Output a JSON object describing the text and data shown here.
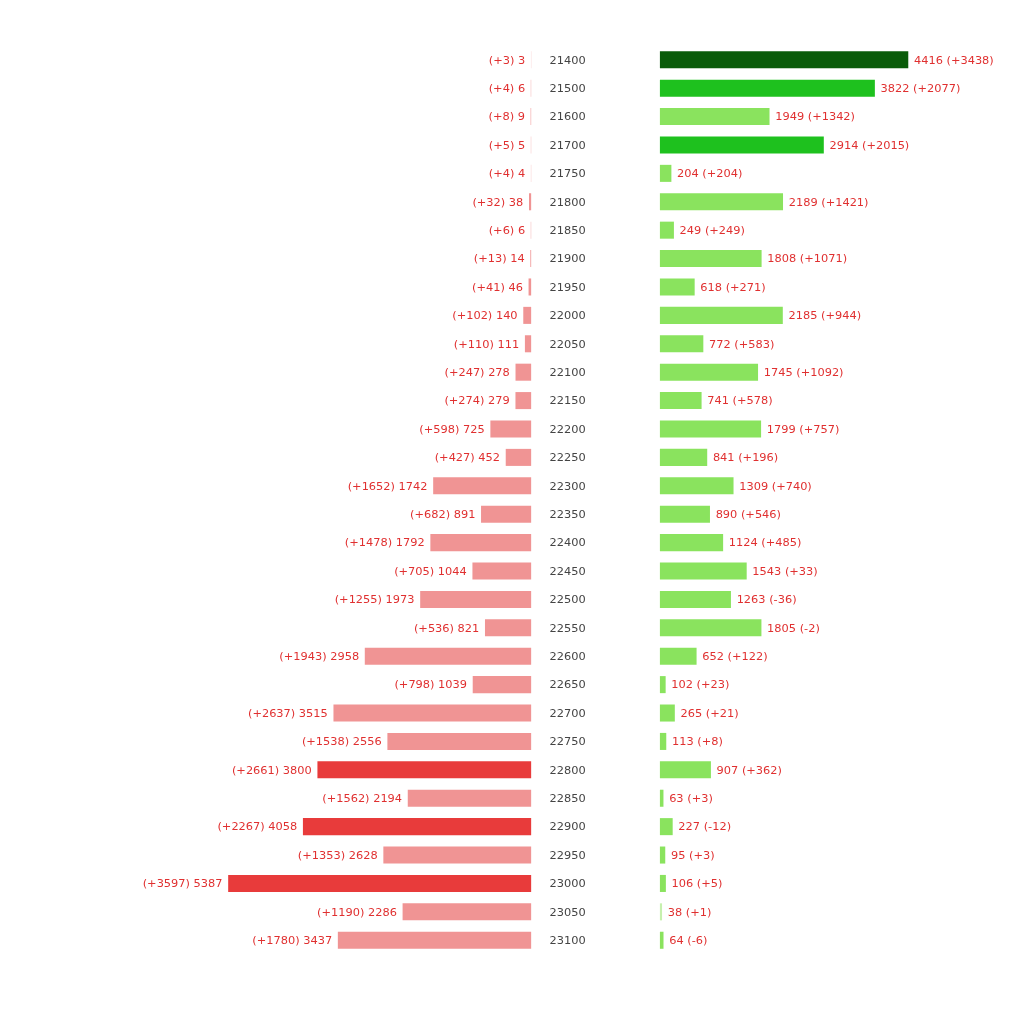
{
  "chart_data": [
    {
      "type": "bar",
      "orientation": "horizontal",
      "tick_labels": "y",
      "categories": [
        "21400",
        "21500",
        "21600",
        "21700",
        "21750",
        "21800",
        "21850",
        "21900",
        "21950",
        "22000",
        "22050",
        "22100",
        "22150",
        "22200",
        "22250",
        "22300",
        "22350",
        "22400",
        "22450",
        "22500",
        "22550",
        "22600",
        "22650",
        "22700",
        "22750",
        "22800",
        "22850",
        "22900",
        "22950",
        "23000",
        "23050",
        "23100"
      ],
      "values": [
        3,
        6,
        9,
        5,
        4,
        38,
        6,
        14,
        46,
        140,
        111,
        278,
        279,
        725,
        452,
        1742,
        891,
        1792,
        1044,
        1973,
        821,
        2958,
        1039,
        3515,
        2556,
        3800,
        2194,
        4058,
        2628,
        5387,
        2286,
        3437
      ],
      "colors": [
        "#f09494",
        "#f09494",
        "#f09494",
        "#f09494",
        "#f09494",
        "#f09494",
        "#f09494",
        "#f09494",
        "#f09494",
        "#f09494",
        "#f09494",
        "#f09494",
        "#f09494",
        "#f09494",
        "#f09494",
        "#f09494",
        "#f09494",
        "#f09494",
        "#f09494",
        "#f09494",
        "#f09494",
        "#f09494",
        "#f09494",
        "#f09494",
        "#f09494",
        "#e83b3b",
        "#f09494",
        "#e83b3b",
        "#f09494",
        "#e83b3b",
        "#f09494",
        "#f09494"
      ],
      "value_labels": [
        "(+3) 3",
        "(+4) 6",
        "(+8) 9",
        "(+5) 5",
        "(+4) 4",
        "(+32) 38",
        "(+6) 6",
        "(+13) 14",
        "(+41) 46",
        "(+102) 140",
        "(+110) 111",
        "(+247) 278",
        "(+274) 279",
        "(+598) 725",
        "(+427) 452",
        "(+1652) 1742",
        "(+682) 891",
        "(+1478) 1792",
        "(+705) 1044",
        "(+1255) 1973",
        "(+536) 821",
        "(+1943) 2958",
        "(+798) 1039",
        "(+2637) 3515",
        "(+1538) 2556",
        "(+2661) 3800",
        "(+1562) 2194",
        "(+2267) 4058",
        "(+1353) 2628",
        "(+3597) 5387",
        "(+1190) 2286",
        "(+1780) 3437"
      ]
    },
    {
      "type": "bar",
      "orientation": "horizontal",
      "tick_labels": false,
      "categories": [
        "21400",
        "21500",
        "21600",
        "21700",
        "21750",
        "21800",
        "21850",
        "21900",
        "21950",
        "22000",
        "22050",
        "22100",
        "22150",
        "22200",
        "22250",
        "22300",
        "22350",
        "22400",
        "22450",
        "22500",
        "22550",
        "22600",
        "22650",
        "22700",
        "22750",
        "22800",
        "22850",
        "22900",
        "22950",
        "23000",
        "23050",
        "23100"
      ],
      "values": [
        4416,
        3822,
        1949,
        2914,
        204,
        2189,
        249,
        1808,
        618,
        2185,
        772,
        1745,
        741,
        1799,
        841,
        1309,
        890,
        1124,
        1543,
        1263,
        1805,
        652,
        102,
        265,
        113,
        907,
        63,
        227,
        95,
        106,
        38,
        64
      ],
      "colors": [
        "#0a5c0a",
        "#1ec11e",
        "#8ae35e",
        "#1ec11e",
        "#8ae35e",
        "#8ae35e",
        "#8ae35e",
        "#8ae35e",
        "#8ae35e",
        "#8ae35e",
        "#8ae35e",
        "#8ae35e",
        "#8ae35e",
        "#8ae35e",
        "#8ae35e",
        "#8ae35e",
        "#8ae35e",
        "#8ae35e",
        "#8ae35e",
        "#8ae35e",
        "#8ae35e",
        "#8ae35e",
        "#8ae35e",
        "#8ae35e",
        "#8ae35e",
        "#8ae35e",
        "#8ae35e",
        "#8ae35e",
        "#8ae35e",
        "#8ae35e",
        "#c6f0ae",
        "#8ae35e"
      ],
      "value_labels": [
        "4416 (+3438)",
        "3822 (+2077)",
        "1949 (+1342)",
        "2914 (+2015)",
        "204 (+204)",
        "2189 (+1421)",
        "249 (+249)",
        "1808 (+1071)",
        "618 (+271)",
        "2185 (+944)",
        "772 (+583)",
        "1745 (+1092)",
        "741 (+578)",
        "1799 (+757)",
        "841 (+196)",
        "1309 (+740)",
        "890 (+546)",
        "1124 (+485)",
        "1543 (+33)",
        "1263 (-36)",
        "1805 (-2)",
        "652 (+122)",
        "102 (+23)",
        "265 (+21)",
        "113 (+8)",
        "907 (+362)",
        "63 (+3)",
        "227 (-12)",
        "95 (+3)",
        "106 (+5)",
        "38 (+1)",
        "64 (-6)"
      ]
    }
  ]
}
